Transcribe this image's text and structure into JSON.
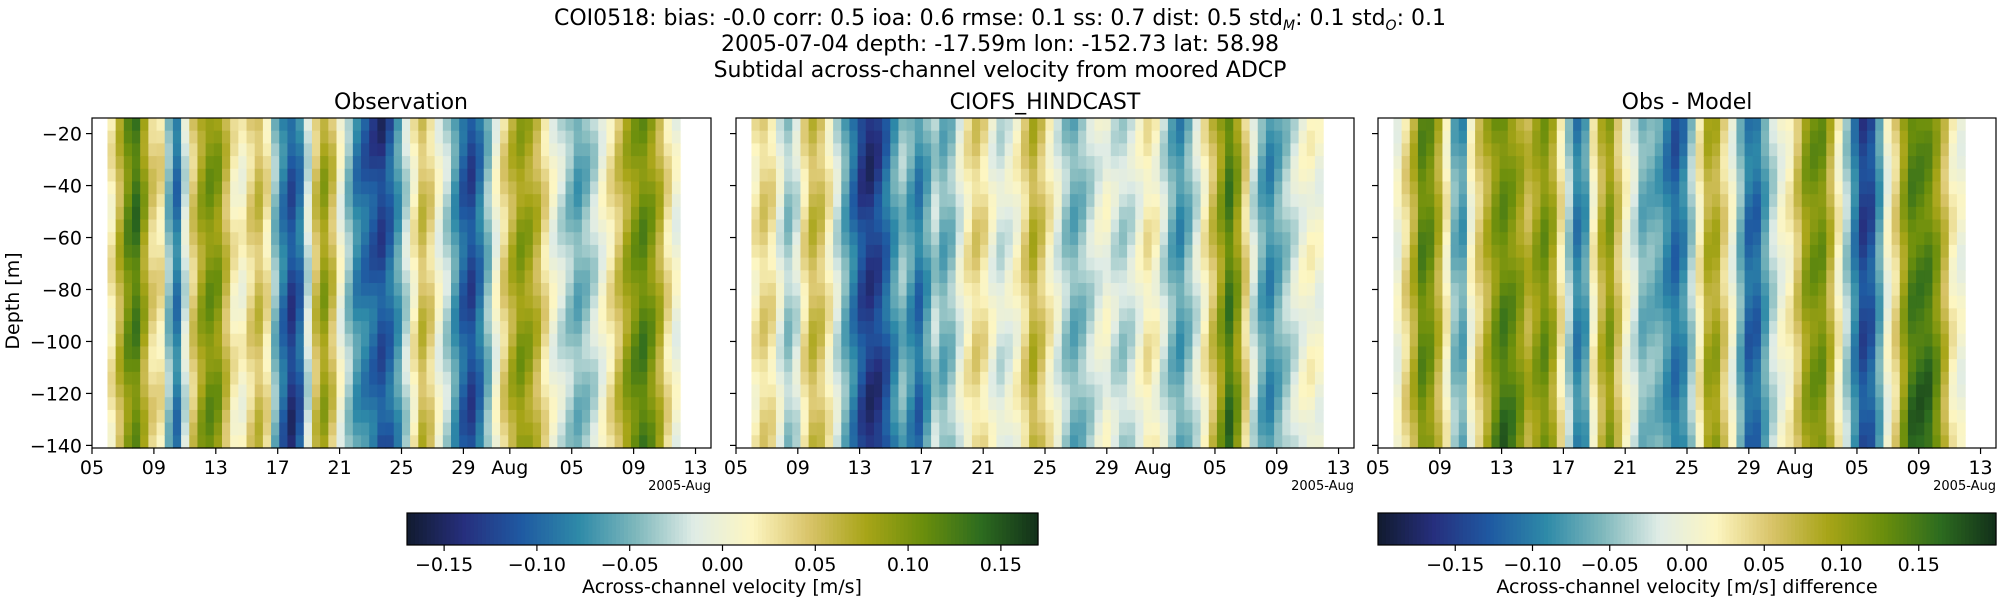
{
  "figure": {
    "title_line1": "COI0518: bias: -0.0  corr: 0.5  ioa: 0.6  rmse: 0.1  ss: 0.7  dist: 0.5  std",
    "title_std_m_sub": "M",
    "title_mid": ": 0.1  std",
    "title_std_o_sub": "O",
    "title_end": ": 0.1",
    "title_line2": "2005-07-04 depth: -17.59m lon: -152.73 lat: 58.98",
    "title_line3": "Subtidal across-channel velocity from moored ADCP"
  },
  "panels": [
    {
      "title": "Observation"
    },
    {
      "title": "CIOFS_HINDCAST"
    },
    {
      "title": "Obs - Model"
    }
  ],
  "colormap": {
    "name": "delta",
    "stops": [
      "#111b2f",
      "#262f7e",
      "#1f5aa2",
      "#2e8aa8",
      "#7fb8bc",
      "#dfece6",
      "#fdf6c2",
      "#d9c46a",
      "#a8a518",
      "#6a8e0c",
      "#2d6c1f",
      "#12301a"
    ]
  },
  "chart_data": [
    {
      "type": "heatmap",
      "panel": "Observation",
      "title": "Observation",
      "ylabel": "Depth [m]",
      "xlabel": "",
      "x_tick_labels": [
        "05",
        "09",
        "13",
        "17",
        "21",
        "25",
        "29",
        "Aug",
        "05",
        "09",
        "13"
      ],
      "x_offset_label": "2005-Aug",
      "y_ticks": [
        -20,
        -40,
        -60,
        -80,
        -100,
        -120,
        -140
      ],
      "ylim": [
        -141,
        -14
      ],
      "xlim_days": [
        "2005-07-05",
        "2005-08-14"
      ],
      "data_range_days": [
        "2005-07-06",
        "2005-08-12"
      ],
      "clim": [
        -0.17,
        0.17
      ],
      "columns": [
        0.02,
        0.06,
        0.1,
        0.12,
        0.08,
        0.04,
        0.03,
        -0.05,
        -0.1,
        -0.02,
        0.05,
        0.09,
        0.11,
        0.1,
        0.06,
        0.02,
        0.01,
        0.04,
        0.06,
        0.03,
        -0.05,
        -0.1,
        -0.13,
        -0.1,
        -0.02,
        0.05,
        0.08,
        0.05,
        0.0,
        -0.04,
        -0.08,
        -0.1,
        -0.12,
        -0.14,
        -0.12,
        -0.08,
        -0.03,
        0.02,
        0.06,
        0.04,
        0.0,
        -0.03,
        -0.07,
        -0.11,
        -0.13,
        -0.1,
        -0.05,
        0.0,
        0.04,
        0.07,
        0.09,
        0.08,
        0.06,
        0.03,
        0.0,
        -0.02,
        -0.04,
        -0.06,
        -0.05,
        -0.03,
        0.0,
        0.03,
        0.06,
        0.09,
        0.11,
        0.12,
        0.1,
        0.07,
        0.03,
        0.0
      ]
    },
    {
      "type": "heatmap",
      "panel": "CIOFS_HINDCAST",
      "title": "CIOFS_HINDCAST",
      "ylabel": "",
      "x_tick_labels": [
        "05",
        "09",
        "13",
        "17",
        "21",
        "25",
        "29",
        "Aug",
        "05",
        "09",
        "13"
      ],
      "x_offset_label": "2005-Aug",
      "ylim": [
        -141,
        -14
      ],
      "xlim_days": [
        "2005-07-05",
        "2005-08-14"
      ],
      "data_range_days": [
        "2005-07-06",
        "2005-08-12"
      ],
      "clim": [
        -0.17,
        0.17
      ],
      "columns": [
        0.02,
        0.04,
        0.03,
        -0.01,
        -0.04,
        -0.02,
        0.03,
        0.06,
        0.05,
        0.02,
        -0.02,
        -0.06,
        -0.1,
        -0.14,
        -0.16,
        -0.15,
        -0.12,
        -0.08,
        -0.05,
        -0.07,
        -0.09,
        -0.06,
        -0.03,
        -0.05,
        -0.04,
        -0.01,
        0.02,
        0.04,
        0.03,
        0.0,
        -0.02,
        -0.01,
        0.01,
        0.04,
        0.07,
        0.05,
        0.02,
        -0.01,
        -0.04,
        -0.06,
        -0.05,
        -0.03,
        -0.01,
        0.0,
        -0.02,
        -0.03,
        -0.02,
        0.0,
        0.02,
        0.01,
        -0.02,
        -0.05,
        -0.07,
        -0.05,
        -0.02,
        0.02,
        0.06,
        0.1,
        0.14,
        0.1,
        0.04,
        -0.02,
        -0.06,
        -0.08,
        -0.06,
        -0.04,
        -0.02,
        0.0,
        0.01,
        0.0
      ]
    },
    {
      "type": "heatmap",
      "panel": "Obs - Model",
      "title": "Obs - Model",
      "ylabel": "",
      "x_tick_labels": [
        "05",
        "09",
        "13",
        "17",
        "21",
        "25",
        "29",
        "Aug",
        "05",
        "09",
        "13"
      ],
      "x_offset_label": "2005-Aug",
      "ylim": [
        -141,
        -14
      ],
      "xlim_days": [
        "2005-07-05",
        "2005-08-14"
      ],
      "data_range_days": [
        "2005-07-06",
        "2005-08-12"
      ],
      "clim": [
        -0.2,
        0.2
      ],
      "columns": [
        0.0,
        0.04,
        0.08,
        0.13,
        0.12,
        0.08,
        0.02,
        -0.06,
        -0.08,
        0.01,
        0.06,
        0.1,
        0.14,
        0.16,
        0.14,
        0.11,
        0.08,
        0.1,
        0.12,
        0.09,
        0.03,
        -0.04,
        -0.1,
        -0.08,
        0.02,
        0.08,
        0.11,
        0.06,
        0.01,
        -0.02,
        -0.06,
        -0.06,
        -0.07,
        -0.1,
        -0.13,
        -0.11,
        -0.05,
        0.03,
        0.1,
        0.1,
        0.05,
        0.0,
        -0.06,
        -0.11,
        -0.11,
        -0.07,
        -0.03,
        0.0,
        0.02,
        0.06,
        0.11,
        0.13,
        0.13,
        0.08,
        0.02,
        -0.04,
        -0.1,
        -0.15,
        -0.14,
        -0.08,
        0.0,
        0.05,
        0.12,
        0.17,
        0.17,
        0.16,
        0.12,
        0.07,
        0.02,
        0.0
      ]
    }
  ],
  "colorbars": [
    {
      "ticks": [
        "−0.15",
        "−0.10",
        "−0.05",
        "0.00",
        "0.05",
        "0.10",
        "0.15"
      ],
      "values": [
        -0.15,
        -0.1,
        -0.05,
        0.0,
        0.05,
        0.1,
        0.15
      ],
      "clim": [
        -0.17,
        0.17
      ],
      "label": "Across-channel velocity [m/s]"
    },
    {
      "ticks": [
        "−0.15",
        "−0.10",
        "−0.05",
        "0.00",
        "0.05",
        "0.10",
        "0.15"
      ],
      "values": [
        -0.15,
        -0.1,
        -0.05,
        0.0,
        0.05,
        0.1,
        0.15
      ],
      "clim": [
        -0.2,
        0.2
      ],
      "label": "Across-channel velocity [m/s] difference"
    }
  ],
  "y_tick_labels": [
    "−20",
    "−40",
    "−60",
    "−80",
    "−100",
    "−120",
    "−140"
  ]
}
